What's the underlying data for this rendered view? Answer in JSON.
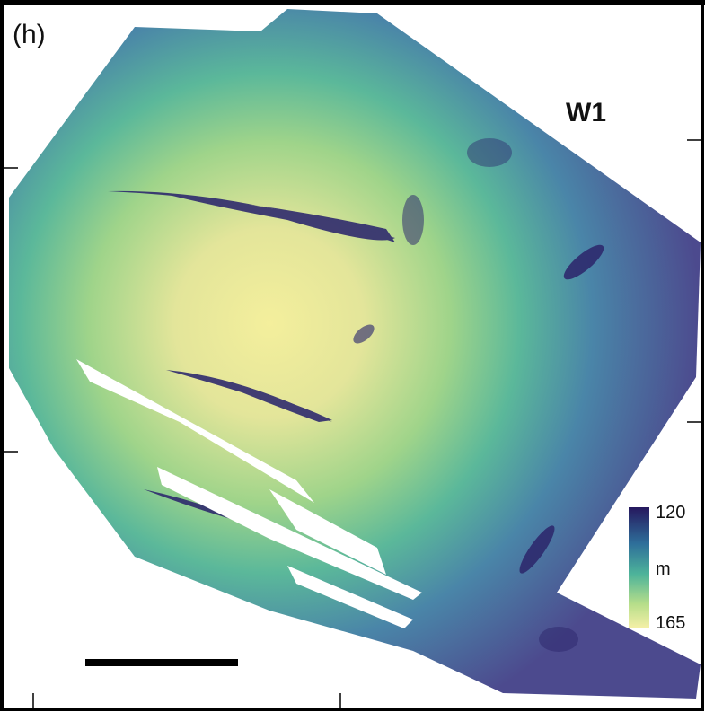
{
  "panel_label": "(h)",
  "site_label": "W1",
  "legend": {
    "unit": "m",
    "ticks": [
      120,
      165
    ]
  }
}
